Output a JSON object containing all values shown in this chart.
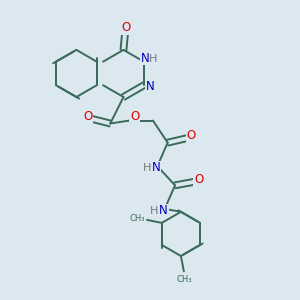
{
  "bg_color": "#dce8f0",
  "bond_color": "#3a6a5a",
  "bond_width": 1.4,
  "atom_colors": {
    "O": "#dd0000",
    "N": "#0000bb",
    "H": "#777777",
    "C": "#3a6a5a"
  },
  "font_size": 8.5,
  "fig_size": [
    3.0,
    3.0
  ],
  "dpi": 100
}
